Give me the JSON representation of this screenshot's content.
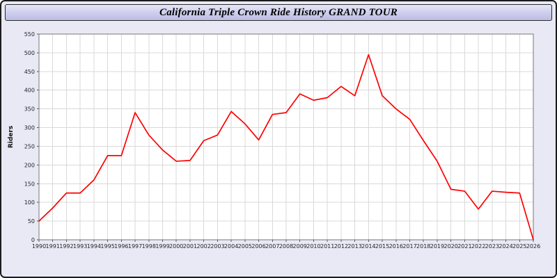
{
  "header": {
    "title": "California Triple Crown Ride History GRAND TOUR"
  },
  "chart_data": {
    "type": "line",
    "title": "California Triple Crown Ride History GRAND TOUR",
    "xlabel": "",
    "ylabel": "Riders",
    "ylim": [
      0,
      550
    ],
    "ytick_step": 50,
    "grid": true,
    "legend": "none",
    "line_color": "#ff0000",
    "plot_bg": "#ffffff",
    "page_bg": "#e9e9f6",
    "grid_color": "#d9d9d9",
    "x": [
      1990,
      1991,
      1992,
      1993,
      1994,
      1995,
      1996,
      1997,
      1998,
      1999,
      2000,
      2001,
      2002,
      2003,
      2004,
      2005,
      2006,
      2007,
      2008,
      2009,
      2010,
      2011,
      2012,
      2013,
      2014,
      2015,
      2016,
      2017,
      2018,
      2019,
      2020,
      2021,
      2022,
      2023,
      2024,
      2025,
      2026
    ],
    "series": [
      {
        "name": "Riders",
        "values": [
          50,
          85,
          125,
          125,
          160,
          225,
          225,
          340,
          280,
          240,
          210,
          212,
          265,
          280,
          343,
          310,
          267,
          335,
          340,
          390,
          373,
          380,
          410,
          385,
          495,
          385,
          350,
          322,
          265,
          210,
          135,
          130,
          82,
          130,
          127,
          125,
          0
        ]
      }
    ]
  }
}
